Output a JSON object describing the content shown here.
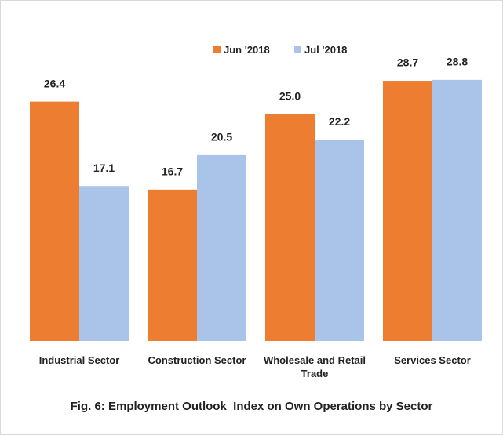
{
  "chart_data": {
    "type": "bar",
    "caption": "Fig. 6: Employment Outlook  Index on Own Operations by Sector",
    "categories": [
      "Industrial Sector",
      "Construction Sector",
      "Wholesale and Retail Trade",
      "Services Sector"
    ],
    "series": [
      {
        "name": "Jun '2018",
        "color": "#ed7d31",
        "values": [
          26.4,
          16.7,
          25.0,
          28.7
        ],
        "value_labels": [
          "26.4",
          "16.7",
          "25.0",
          "28.7"
        ]
      },
      {
        "name": "Jul '2018",
        "color": "#a9c4e8",
        "values": [
          17.1,
          20.5,
          22.2,
          28.8
        ],
        "value_labels": [
          "17.1",
          "20.5",
          "22.2",
          "28.8"
        ]
      }
    ],
    "ylim": [
      0,
      30
    ],
    "legend": "top"
  }
}
